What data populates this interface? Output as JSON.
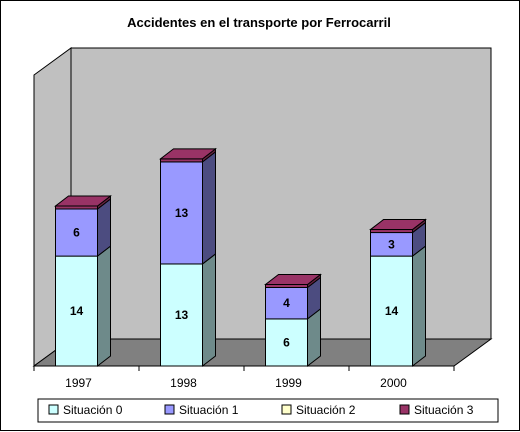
{
  "chart_data": {
    "type": "bar",
    "stacked": true,
    "three_d": true,
    "title": "Accidentes en el transporte por Ferrocarril",
    "categories": [
      "1997",
      "1998",
      "1999",
      "2000"
    ],
    "ylim": [
      0,
      28
    ],
    "grid": false,
    "legend_position": "bottom",
    "series": [
      {
        "name": "Situación 0",
        "values": [
          14,
          13,
          6,
          14
        ],
        "color": "#ccffff",
        "side_color": "#6e8a8a"
      },
      {
        "name": "Situación 1",
        "values": [
          6,
          13,
          4,
          3
        ],
        "color": "#9999ff",
        "side_color": "#4c4c80"
      },
      {
        "name": "Situación 2",
        "values": [
          0,
          0,
          0,
          0
        ],
        "color": "#ffffcc",
        "side_color": "#80806a"
      },
      {
        "name": "Situación 3",
        "values": [
          0,
          0,
          0,
          0
        ],
        "color": "#993366",
        "side_color": "#66223f"
      }
    ],
    "data_labels": [
      [
        "14",
        "13",
        "6",
        "14"
      ],
      [
        "6",
        "13",
        "4",
        "3"
      ]
    ],
    "colors": {
      "back_wall": "#c0c0c0",
      "floor": "#808080",
      "cap": "#993366",
      "cap_side": "#66223f"
    }
  }
}
